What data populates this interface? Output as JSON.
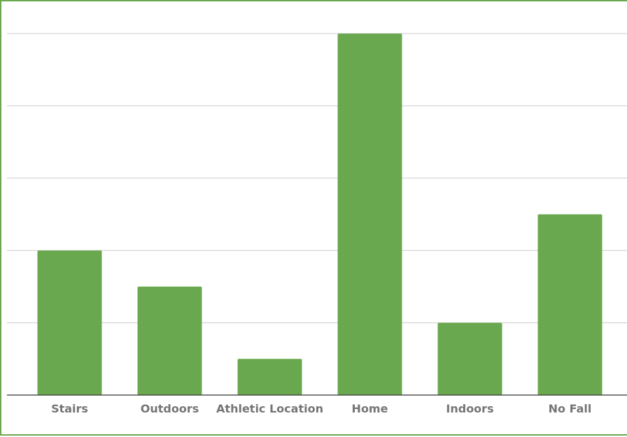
{
  "chart_data": {
    "type": "bar",
    "title": "",
    "xlabel": "",
    "ylabel": "",
    "categories": [
      "Stairs",
      "Outdoors",
      "Athletic Location",
      "Home",
      "Indoors",
      "No Fall"
    ],
    "values": [
      4,
      3,
      1,
      10,
      2,
      5
    ],
    "ylim": [
      0,
      10
    ],
    "y_gridlines": [
      2,
      4,
      6,
      8,
      10
    ],
    "y_tick_labels_shown": false,
    "grid": true,
    "legend": "none",
    "colors": {
      "bar": "#6aa84f",
      "frame": "#6aa84f",
      "grid": "#cccccc",
      "axis": "#333333",
      "tick_label": "#757575"
    }
  }
}
